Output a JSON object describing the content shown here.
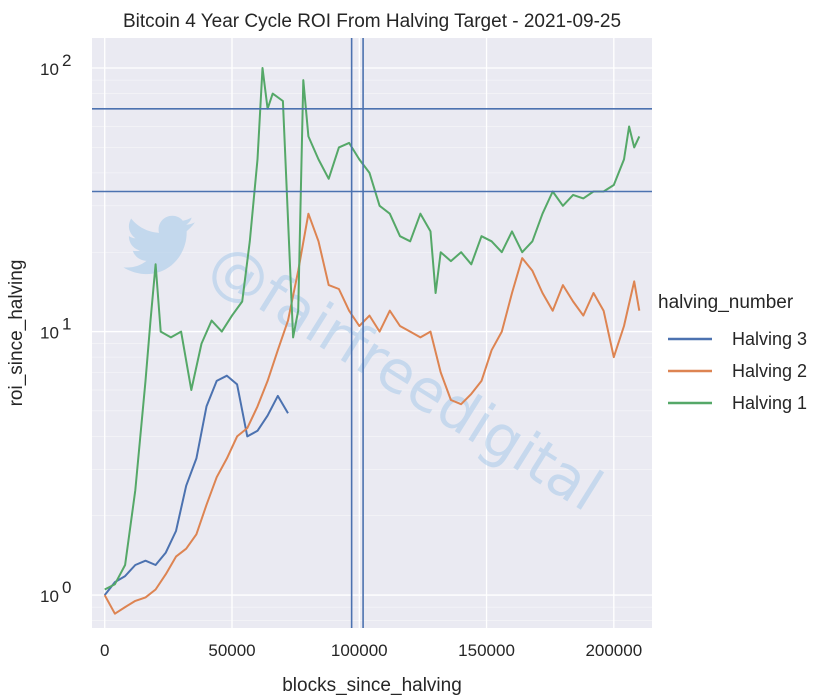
{
  "chart_data": {
    "type": "line",
    "title": "Bitcoin 4 Year Cycle ROI From Halving Target - 2021-09-25",
    "xlabel": "blocks_since_halving",
    "ylabel": "roi_since_halving",
    "yscale": "log",
    "xlim": [
      -5000,
      215000
    ],
    "ylim": [
      0.75,
      130
    ],
    "grid": true,
    "background_color": "#eaeaf2",
    "x_ticks": [
      0,
      50000,
      100000,
      150000,
      200000
    ],
    "x_tick_labels": [
      "0",
      "50000",
      "100000",
      "150000",
      "200000"
    ],
    "y_ticks": [
      1,
      10,
      100
    ],
    "y_tick_labels": [
      "10",
      "10",
      "10"
    ],
    "y_tick_exponents": [
      "0",
      "1",
      "2"
    ],
    "legend": {
      "title": "halving_number",
      "placement": "right"
    },
    "reference_lines": {
      "horizontal_y": [
        34,
        70
      ],
      "vertical_x": [
        97000,
        101500
      ],
      "color": "#4c72b0"
    },
    "series": [
      {
        "name": "Halving 3",
        "color": "#4c72b0",
        "x": [
          0,
          4000,
          8000,
          12000,
          16000,
          20000,
          24000,
          28000,
          32000,
          36000,
          40000,
          44000,
          48000,
          52000,
          56000,
          60000,
          64000,
          68000,
          72000
        ],
        "y": [
          1.0,
          1.12,
          1.18,
          1.3,
          1.35,
          1.3,
          1.45,
          1.75,
          2.6,
          3.3,
          5.2,
          6.5,
          6.8,
          6.3,
          4.0,
          4.2,
          4.8,
          5.7,
          4.9
        ]
      },
      {
        "name": "Halving 2",
        "color": "#dd8452",
        "x": [
          0,
          4000,
          8000,
          12000,
          16000,
          20000,
          24000,
          28000,
          32000,
          36000,
          40000,
          44000,
          48000,
          52000,
          56000,
          60000,
          64000,
          68000,
          72000,
          76000,
          80000,
          84000,
          88000,
          92000,
          96000,
          100000,
          104000,
          108000,
          112000,
          116000,
          120000,
          124000,
          128000,
          132000,
          136000,
          140000,
          144000,
          148000,
          152000,
          156000,
          160000,
          164000,
          168000,
          172000,
          176000,
          180000,
          184000,
          188000,
          192000,
          196000,
          200000,
          204000,
          208000,
          210000
        ],
        "y": [
          1.0,
          0.85,
          0.9,
          0.95,
          0.98,
          1.05,
          1.2,
          1.4,
          1.5,
          1.7,
          2.2,
          2.8,
          3.3,
          4.0,
          4.3,
          5.2,
          6.5,
          8.5,
          11.0,
          17.0,
          28.0,
          22.0,
          15.0,
          14.5,
          12.0,
          10.5,
          11.5,
          10.0,
          12.0,
          10.5,
          10.0,
          9.5,
          10.0,
          7.0,
          5.5,
          5.3,
          5.8,
          6.5,
          8.5,
          10.0,
          14.0,
          19.0,
          17.0,
          14.0,
          12.0,
          15.0,
          13.0,
          11.5,
          14.0,
          12.0,
          8.0,
          10.5,
          15.5,
          12.0
        ]
      },
      {
        "name": "Halving 1",
        "color": "#55a868",
        "x": [
          0,
          4000,
          8000,
          12000,
          16000,
          18000,
          20000,
          22000,
          26000,
          30000,
          34000,
          38000,
          42000,
          46000,
          50000,
          54000,
          57000,
          60000,
          62000,
          64000,
          66000,
          70000,
          74000,
          76000,
          78000,
          80000,
          84000,
          88000,
          92000,
          96000,
          100000,
          104000,
          108000,
          112000,
          116000,
          120000,
          124000,
          128000,
          130000,
          132000,
          136000,
          140000,
          144000,
          148000,
          152000,
          156000,
          160000,
          164000,
          168000,
          172000,
          176000,
          180000,
          184000,
          188000,
          192000,
          196000,
          200000,
          204000,
          206000,
          208000,
          210000
        ],
        "y": [
          1.05,
          1.1,
          1.3,
          2.5,
          6.5,
          11.0,
          18.0,
          10.0,
          9.5,
          10.0,
          6.0,
          9.0,
          11.0,
          10.0,
          11.5,
          13.0,
          22.0,
          45.0,
          100.0,
          70.0,
          80.0,
          75.0,
          9.5,
          12.0,
          90.0,
          55.0,
          45.0,
          38.0,
          50.0,
          52.0,
          45.0,
          40.0,
          30.0,
          28.0,
          23.0,
          22.0,
          28.0,
          24.0,
          14.0,
          20.0,
          18.5,
          20.0,
          18.0,
          23.0,
          22.0,
          20.0,
          24.0,
          20.0,
          22.0,
          28.0,
          34.0,
          30.0,
          33.0,
          32.0,
          34.0,
          34.0,
          36.0,
          45.0,
          60.0,
          50.0,
          55.0
        ]
      }
    ]
  },
  "watermark": {
    "text": "@fairfreedigital",
    "icon": "twitter-bird-icon",
    "color": "#a9cbea"
  }
}
